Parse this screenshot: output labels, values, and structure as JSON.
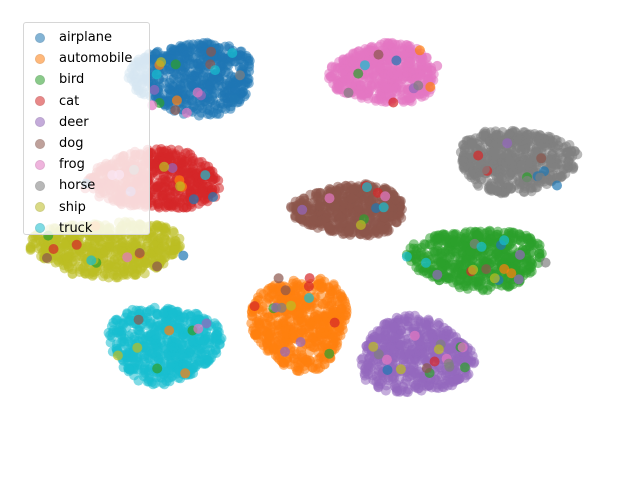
{
  "chart_data": {
    "type": "scatter",
    "title": "",
    "xlabel": "",
    "ylabel": "",
    "axes_visible": false,
    "grid": false,
    "legend_position": "upper-left",
    "xlim": [
      -100,
      100
    ],
    "ylim": [
      -100,
      100
    ],
    "series": [
      {
        "name": "airplane",
        "color": "#1f77b4",
        "center": [
          -45,
          75
        ],
        "radius": [
          22,
          17
        ]
      },
      {
        "name": "automobile",
        "color": "#ff7f0e",
        "center": [
          -7,
          -40
        ],
        "radius": [
          17,
          22
        ]
      },
      {
        "name": "bird",
        "color": "#2ca02c",
        "center": [
          56,
          -10
        ],
        "radius": [
          24,
          14
        ]
      },
      {
        "name": "cat",
        "color": "#d62728",
        "center": [
          -59,
          27
        ],
        "radius": [
          24,
          14
        ]
      },
      {
        "name": "deer",
        "color": "#9467bd",
        "center": [
          34,
          -56
        ],
        "radius": [
          20,
          18
        ]
      },
      {
        "name": "dog",
        "color": "#8c564b",
        "center": [
          11,
          13
        ],
        "radius": [
          20,
          12
        ]
      },
      {
        "name": "frog",
        "color": "#e377c2",
        "center": [
          23,
          77
        ],
        "radius": [
          19,
          14
        ]
      },
      {
        "name": "horse",
        "color": "#7f7f7f",
        "center": [
          70,
          36
        ],
        "radius": [
          21,
          15
        ]
      },
      {
        "name": "ship",
        "color": "#bcbd22",
        "center": [
          -76,
          -5
        ],
        "radius": [
          27,
          13
        ]
      },
      {
        "name": "truck",
        "color": "#17becf",
        "center": [
          -56,
          -50
        ],
        "radius": [
          20,
          18
        ]
      }
    ]
  }
}
